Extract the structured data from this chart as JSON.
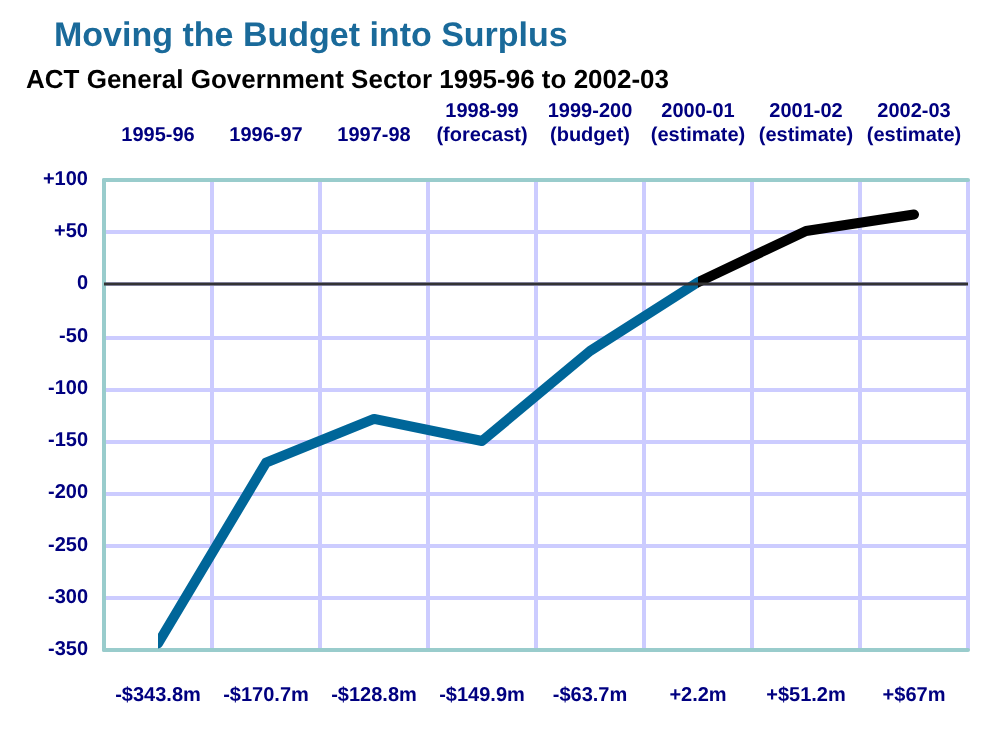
{
  "chart_data": {
    "type": "line",
    "title": "Moving the Budget into Surplus",
    "subtitle": "ACT General Government Sector 1995-96 to 2002-03",
    "categories": [
      "1995-96",
      "1996-97",
      "1997-98",
      "1998-99\n(forecast)",
      "1999-200\n(budget)",
      "2000-01\n(estimate)",
      "2001-02\n(estimate)",
      "2002-03\n(estimate)"
    ],
    "series": [
      {
        "colors": [
          "#006699",
          "#006699",
          "#006699",
          "#006699",
          "#006699",
          "#000000",
          "#000000",
          "#000000"
        ],
        "values": [
          -343.8,
          -170.7,
          -128.8,
          -149.9,
          -63.7,
          2.2,
          51.2,
          67
        ],
        "value_labels": [
          "-$343.8m",
          "-$170.7m",
          "-$128.8m",
          "-$149.9m",
          "-$63.7m",
          "+2.2m",
          "+$51.2m",
          "+$67m"
        ]
      }
    ],
    "ylim": [
      -350,
      100
    ],
    "yticks": [
      {
        "value": 100,
        "label": "+100"
      },
      {
        "value": 50,
        "label": "+50"
      },
      0,
      -50,
      -100,
      -150,
      -200,
      -250,
      -300,
      -350
    ],
    "ref_lines": [
      {
        "axis": "y",
        "value": 0,
        "color": "#333333"
      }
    ],
    "grid": true,
    "marker": "none",
    "line_style": "solid"
  }
}
